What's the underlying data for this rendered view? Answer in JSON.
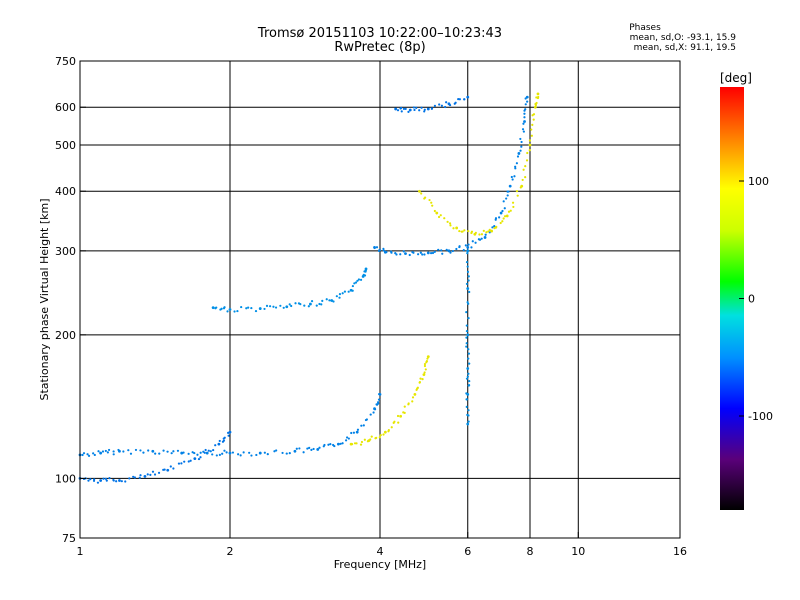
{
  "chart_data": {
    "type": "scatter",
    "title": "Tromsø 20151103 10:22:00–10:23:43",
    "subtitle": "RwPretec (8p)",
    "stats": {
      "heading": "Phases",
      "o_line": "mean, sd,O: -93.1, 15.9",
      "x_line": "mean, sd,X:  91.1, 19.5"
    },
    "xlabel": "Frequency [MHz]",
    "ylabel": "Stationary phase Virtual Height [km]",
    "x_scale": "log",
    "y_scale": "log",
    "xlim": [
      1,
      16
    ],
    "ylim": [
      75,
      750
    ],
    "grid": true,
    "x_ticks": [
      1,
      2,
      4,
      6,
      8,
      10,
      16
    ],
    "x_gridlines": [
      2,
      4,
      6,
      8,
      10
    ],
    "y_ticks": [
      75,
      100,
      200,
      300,
      400,
      500,
      600,
      750
    ],
    "y_gridlines": [
      100,
      200,
      300,
      400,
      500,
      600
    ],
    "colorbar": {
      "label": "[deg]",
      "range": [
        -180,
        180
      ],
      "ticks": [
        100,
        0,
        -100
      ],
      "placement": "right"
    },
    "traces": [
      {
        "name": "",
        "phase": -95,
        "points": [
          [
            1.0,
            112
          ],
          [
            1.1,
            113
          ],
          [
            1.2,
            114
          ],
          [
            1.4,
            114
          ],
          [
            1.6,
            113
          ],
          [
            1.8,
            113
          ],
          [
            2.0,
            113
          ],
          [
            2.3,
            113
          ],
          [
            2.7,
            114
          ],
          [
            3.0,
            115
          ],
          [
            3.3,
            118
          ],
          [
            3.6,
            125
          ],
          [
            3.9,
            140
          ],
          [
            4.0,
            150
          ]
        ]
      },
      {
        "name": "",
        "phase": -100,
        "points": [
          [
            1.0,
            100
          ],
          [
            1.1,
            99
          ],
          [
            1.2,
            99
          ],
          [
            1.35,
            101
          ],
          [
            1.5,
            104
          ],
          [
            1.7,
            110
          ],
          [
            1.9,
            118
          ],
          [
            2.0,
            125
          ]
        ]
      },
      {
        "name": "",
        "phase": -90,
        "points": [
          [
            1.85,
            228
          ],
          [
            2.0,
            226
          ],
          [
            2.3,
            227
          ],
          [
            2.6,
            229
          ],
          [
            2.9,
            232
          ],
          [
            3.2,
            236
          ],
          [
            3.5,
            248
          ],
          [
            3.7,
            265
          ],
          [
            3.75,
            275
          ]
        ]
      },
      {
        "name": "",
        "phase": -95,
        "points": [
          [
            3.9,
            305
          ],
          [
            4.1,
            298
          ],
          [
            4.5,
            296
          ],
          [
            5.0,
            297
          ],
          [
            5.5,
            300
          ],
          [
            6.0,
            305
          ],
          [
            6.5,
            320
          ],
          [
            7.0,
            360
          ],
          [
            7.3,
            410
          ],
          [
            7.6,
            480
          ],
          [
            7.8,
            560
          ],
          [
            7.9,
            630
          ]
        ]
      },
      {
        "name": "",
        "phase": 100,
        "points": [
          [
            3.5,
            118
          ],
          [
            3.8,
            120
          ],
          [
            4.1,
            125
          ],
          [
            4.4,
            135
          ],
          [
            4.7,
            150
          ],
          [
            4.9,
            165
          ],
          [
            5.0,
            180
          ]
        ]
      },
      {
        "name": "",
        "phase": 100,
        "points": [
          [
            4.8,
            400
          ],
          [
            5.2,
            360
          ],
          [
            5.7,
            335
          ],
          [
            6.2,
            325
          ],
          [
            6.7,
            330
          ],
          [
            7.2,
            355
          ],
          [
            7.7,
            410
          ],
          [
            8.0,
            500
          ],
          [
            8.2,
            600
          ],
          [
            8.3,
            640
          ]
        ]
      },
      {
        "name": "",
        "phase": -100,
        "points": [
          [
            4.3,
            595
          ],
          [
            4.6,
            592
          ],
          [
            5.0,
            595
          ],
          [
            5.5,
            610
          ],
          [
            6.0,
            630
          ]
        ]
      },
      {
        "name": "",
        "phase": -90,
        "points": [
          [
            6.0,
            300
          ],
          [
            6.0,
            250
          ],
          [
            6.0,
            200
          ],
          [
            6.0,
            170
          ],
          [
            6.0,
            150
          ],
          [
            6.0,
            130
          ]
        ]
      }
    ]
  }
}
